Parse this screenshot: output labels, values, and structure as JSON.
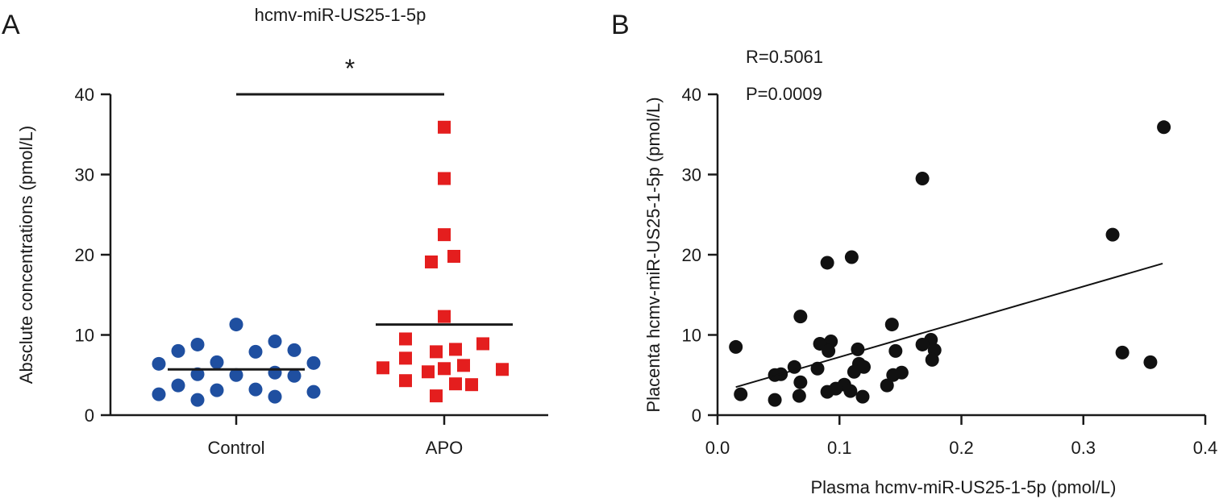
{
  "panel_labels": [
    "A",
    "B"
  ],
  "chart_data": [
    {
      "type": "scatter",
      "panel": "A",
      "title": "hcmv-miR-US25-1-5p",
      "ylabel": "Absclute concentrations (pmol/L)",
      "ylim": [
        0,
        40
      ],
      "yticks": [
        "0",
        "10",
        "20",
        "30",
        "40"
      ],
      "categories": [
        "Control",
        "APO"
      ],
      "grid": false,
      "significance": {
        "text": "*",
        "between": [
          "Control",
          "APO"
        ]
      },
      "groups": [
        {
          "category": "Control",
          "marker": "circle",
          "color": "#1f4fa0",
          "mean": 5.7,
          "values": [
            11.3,
            9.2,
            8.8,
            8.1,
            8.0,
            7.9,
            6.6,
            6.5,
            6.4,
            5.3,
            5.1,
            5.0,
            4.9,
            3.7,
            3.2,
            3.1,
            2.9,
            2.6,
            2.3,
            1.9
          ]
        },
        {
          "category": "APO",
          "marker": "square",
          "color": "#e41e1e",
          "mean": 11.3,
          "values": [
            35.9,
            29.5,
            22.5,
            19.8,
            19.1,
            12.3,
            9.5,
            8.9,
            8.2,
            7.9,
            7.1,
            6.2,
            5.9,
            5.8,
            5.7,
            5.4,
            4.3,
            3.9,
            3.8,
            2.4
          ]
        }
      ]
    },
    {
      "type": "scatter",
      "panel": "B",
      "xlabel": "Plasma hcmv-miR-US25-1-5p (pmol/L)",
      "ylabel": "Placenta hcmv-miR-US25-1-5p (pmol/L)",
      "xlim": [
        0,
        0.4
      ],
      "ylim": [
        0,
        40
      ],
      "xticks": [
        "0.0",
        "0.1",
        "0.2",
        "0.3",
        "0.4"
      ],
      "yticks": [
        "0",
        "10",
        "20",
        "30",
        "40"
      ],
      "grid": false,
      "annotations": [
        "R=0.5061",
        "P=0.0009"
      ],
      "point_color": "#111111",
      "fit_line": {
        "x": [
          0.015,
          0.365
        ],
        "y": [
          3.5,
          18.9
        ]
      },
      "points": [
        {
          "x": 0.366,
          "y": 35.9
        },
        {
          "x": 0.168,
          "y": 29.5
        },
        {
          "x": 0.324,
          "y": 22.5
        },
        {
          "x": 0.11,
          "y": 19.7
        },
        {
          "x": 0.09,
          "y": 19.0
        },
        {
          "x": 0.068,
          "y": 12.3
        },
        {
          "x": 0.143,
          "y": 11.3
        },
        {
          "x": 0.175,
          "y": 9.4
        },
        {
          "x": 0.093,
          "y": 9.2
        },
        {
          "x": 0.084,
          "y": 8.9
        },
        {
          "x": 0.168,
          "y": 8.8
        },
        {
          "x": 0.015,
          "y": 8.5
        },
        {
          "x": 0.115,
          "y": 8.2
        },
        {
          "x": 0.178,
          "y": 8.1
        },
        {
          "x": 0.091,
          "y": 8.0
        },
        {
          "x": 0.146,
          "y": 8.0
        },
        {
          "x": 0.332,
          "y": 7.8
        },
        {
          "x": 0.176,
          "y": 6.9
        },
        {
          "x": 0.355,
          "y": 6.6
        },
        {
          "x": 0.116,
          "y": 6.4
        },
        {
          "x": 0.12,
          "y": 6.0
        },
        {
          "x": 0.063,
          "y": 6.0
        },
        {
          "x": 0.082,
          "y": 5.8
        },
        {
          "x": 0.112,
          "y": 5.4
        },
        {
          "x": 0.151,
          "y": 5.3
        },
        {
          "x": 0.052,
          "y": 5.1
        },
        {
          "x": 0.047,
          "y": 5.0
        },
        {
          "x": 0.144,
          "y": 5.0
        },
        {
          "x": 0.068,
          "y": 4.1
        },
        {
          "x": 0.104,
          "y": 3.8
        },
        {
          "x": 0.139,
          "y": 3.7
        },
        {
          "x": 0.097,
          "y": 3.3
        },
        {
          "x": 0.109,
          "y": 3.0
        },
        {
          "x": 0.09,
          "y": 2.9
        },
        {
          "x": 0.019,
          "y": 2.6
        },
        {
          "x": 0.067,
          "y": 2.4
        },
        {
          "x": 0.119,
          "y": 2.3
        },
        {
          "x": 0.047,
          "y": 1.9
        }
      ]
    }
  ]
}
